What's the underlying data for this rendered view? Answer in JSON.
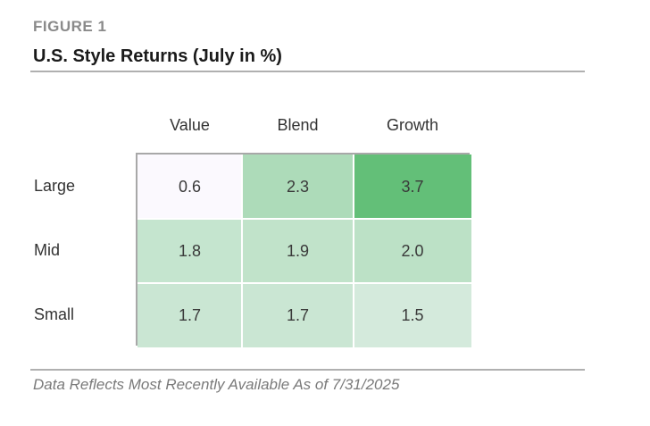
{
  "figure_label": "FIGURE 1",
  "title": "U.S. Style Returns (July in %)",
  "footnote": "Data Reflects Most Recently Available As of 7/31/2025",
  "chart_data": {
    "type": "heatmap",
    "title": "U.S. Style Returns (July in %)",
    "columns": [
      "Value",
      "Blend",
      "Growth"
    ],
    "rows": [
      "Large",
      "Mid",
      "Small"
    ],
    "values": [
      [
        0.6,
        2.3,
        3.7
      ],
      [
        1.8,
        1.9,
        2.0
      ],
      [
        1.7,
        1.7,
        1.5
      ]
    ],
    "value_labels": [
      [
        "0.6",
        "2.3",
        "3.7"
      ],
      [
        "1.8",
        "1.9",
        "2.0"
      ],
      [
        "1.7",
        "1.7",
        "1.5"
      ]
    ],
    "color_low": "#fbf9fe",
    "color_high": "#63bf78"
  }
}
